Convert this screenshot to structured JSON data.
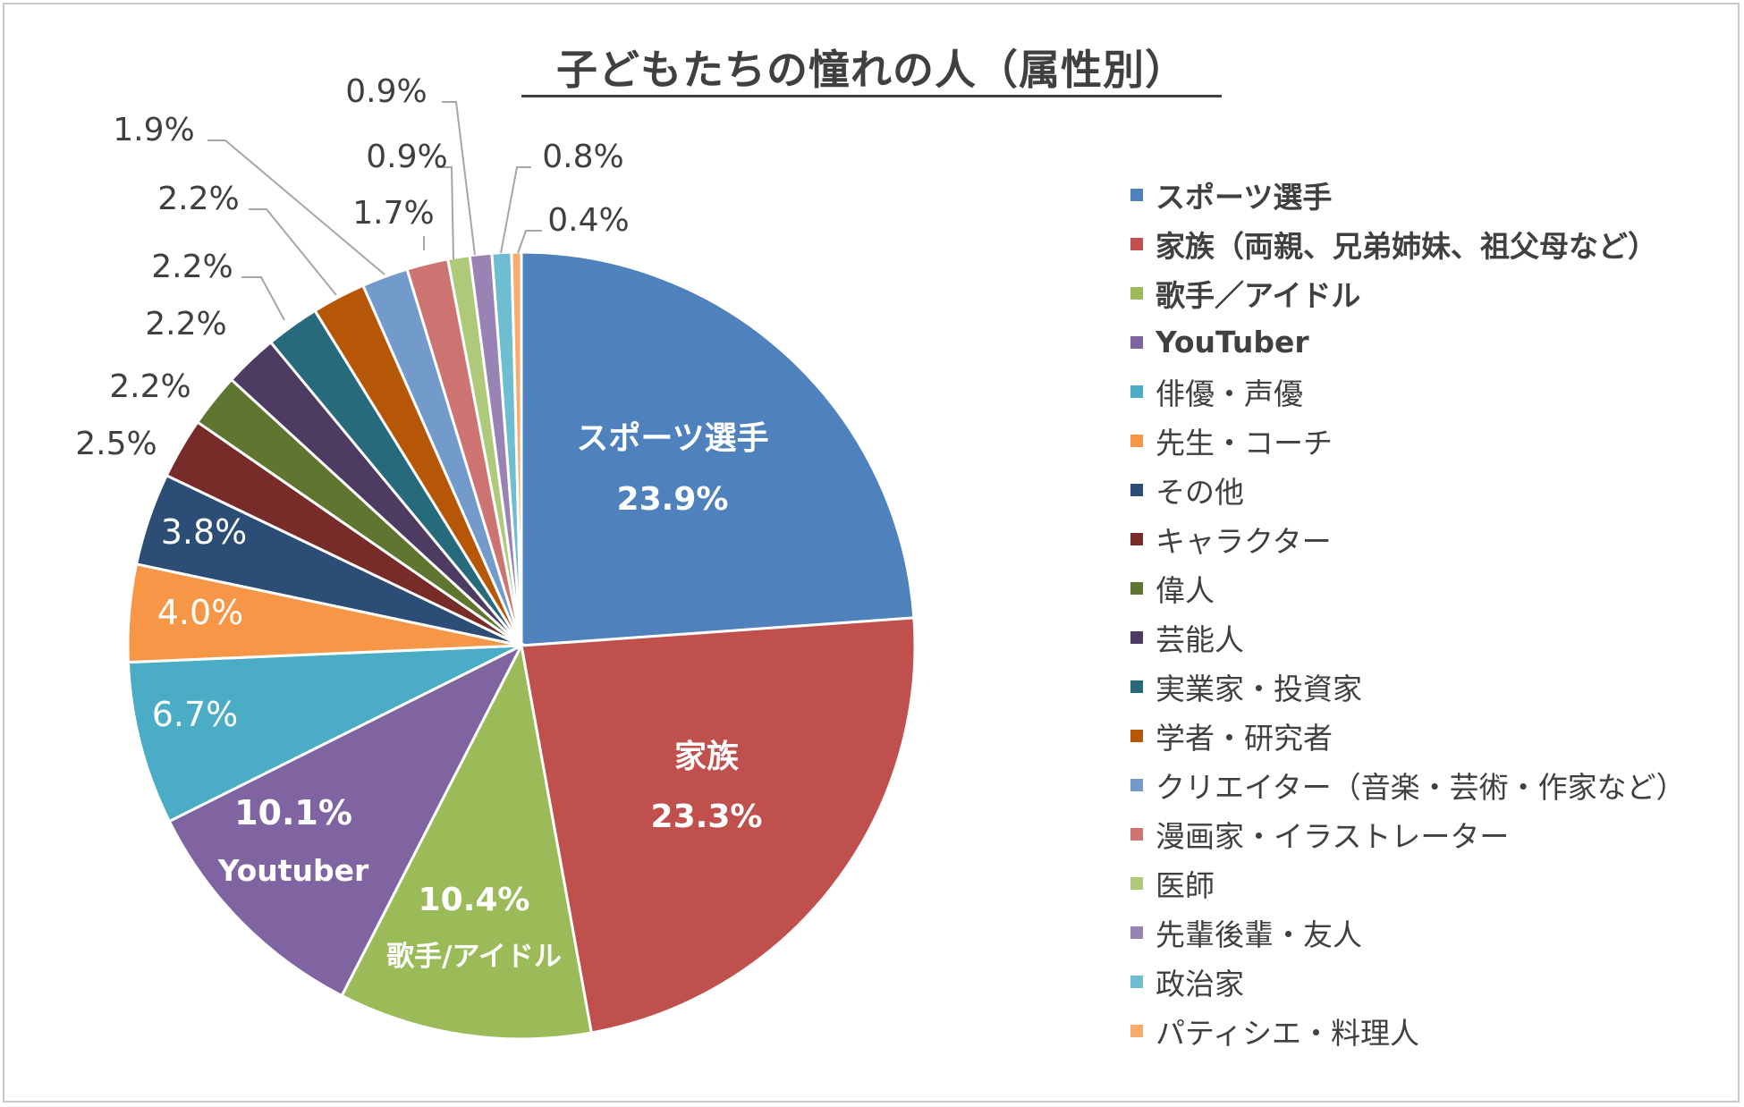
{
  "chart_data": {
    "type": "pie",
    "title": "子どもたちの憧れの人（属性別）",
    "slices": [
      {
        "name": "スポーツ選手",
        "value": 23.9,
        "label": "23.9%",
        "inside_name": "スポーツ選手",
        "color": "#4F81BD",
        "bold": true
      },
      {
        "name": "家族（両親、兄弟姉妹、祖父母など）",
        "value": 23.3,
        "label": "23.3%",
        "inside_name": "家族",
        "color": "#C0504D",
        "bold": true
      },
      {
        "name": "歌手／アイドル",
        "value": 10.4,
        "label": "10.4%",
        "inside_name": "歌手/アイドル",
        "color": "#9BBB59",
        "bold": true
      },
      {
        "name": "YouTuber",
        "value": 10.1,
        "label": "10.1%",
        "inside_name": "Youtuber",
        "color": "#8064A2",
        "bold": true
      },
      {
        "name": "俳優・声優",
        "value": 6.7,
        "label": "6.7%",
        "color": "#4BACC6",
        "bold": false
      },
      {
        "name": "先生・コーチ",
        "value": 4.0,
        "label": "4.0%",
        "color": "#F79646",
        "bold": false
      },
      {
        "name": "その他",
        "value": 3.8,
        "label": "3.8%",
        "color": "#2C4D75",
        "bold": false
      },
      {
        "name": "キャラクター",
        "value": 2.5,
        "label": "2.5%",
        "color": "#772C2A",
        "bold": false
      },
      {
        "name": "偉人",
        "value": 2.2,
        "label": "2.2%",
        "color": "#5F7530",
        "bold": false
      },
      {
        "name": "芸能人",
        "value": 2.2,
        "label": "2.2%",
        "color": "#4D3B62",
        "bold": false
      },
      {
        "name": "実業家・投資家",
        "value": 2.2,
        "label": "2.2%",
        "color": "#276A7C",
        "bold": false
      },
      {
        "name": "学者・研究者",
        "value": 2.2,
        "label": "2.2%",
        "color": "#B65708",
        "bold": false
      },
      {
        "name": "クリエイター（音楽・芸術・作家など）",
        "value": 1.9,
        "label": "1.9%",
        "color": "#729ACA",
        "bold": false
      },
      {
        "name": "漫画家・イラストレーター",
        "value": 1.7,
        "label": "1.7%",
        "color": "#CD7371",
        "bold": false
      },
      {
        "name": "医師",
        "value": 0.9,
        "label": "0.9%",
        "color": "#AFC97A",
        "bold": false
      },
      {
        "name": "先輩後輩・友人",
        "value": 0.9,
        "label": "0.9%",
        "color": "#9983B5",
        "bold": false
      },
      {
        "name": "政治家",
        "value": 0.8,
        "label": "0.8%",
        "color": "#6FBDD1",
        "bold": false
      },
      {
        "name": "パティシエ・料理人",
        "value": 0.4,
        "label": "0.4%",
        "color": "#F9AB6B",
        "bold": false
      }
    ],
    "legend_position": "right"
  }
}
